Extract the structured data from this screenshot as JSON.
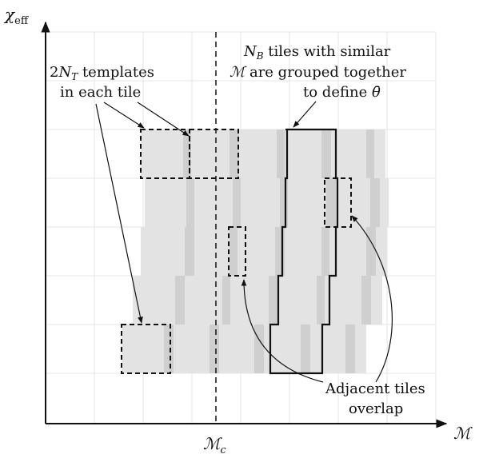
{
  "axes": {
    "y_symbol": "χ",
    "y_subscript": "eff",
    "x_symbol": "ℳ",
    "x_marker_symbol": "ℳ",
    "x_marker_subscript": "c"
  },
  "annotations": {
    "templates_line1_coef": "2",
    "templates_line1_sym": "N",
    "templates_line1_sub": "T",
    "templates_line1_rest": " templates",
    "templates_line2": "in each tile",
    "grouped_line1_sym": "N",
    "grouped_line1_sub": "B",
    "grouped_line1_rest": " tiles with similar",
    "grouped_line2_sym": "ℳ",
    "grouped_line2_rest": " are grouped together",
    "grouped_line3_text": "to define ",
    "grouped_line3_sym": "θ̄",
    "adjacent_line1": "Adjacent tiles",
    "adjacent_line2": "overlap"
  },
  "colors": {
    "tile_light": "#e3e3e3",
    "tile_dark": "#cfcfcf",
    "grid": "#e6e6e6",
    "ink": "#111111"
  }
}
